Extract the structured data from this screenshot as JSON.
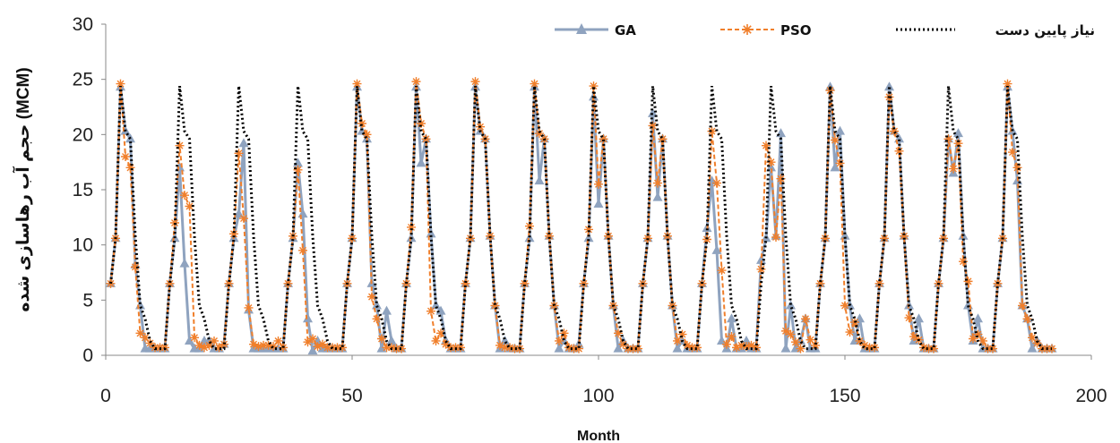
{
  "chart_data": {
    "type": "line",
    "xlabel": "Month",
    "ylabel": "حجم آب رهاسازی شده (MCM)",
    "xlim": [
      0,
      200
    ],
    "ylim": [
      0,
      30
    ],
    "x_ticks": [
      0,
      50,
      100,
      150,
      200
    ],
    "y_ticks": [
      0,
      5,
      10,
      15,
      20,
      25,
      30
    ],
    "grid": false,
    "legend_position": "top",
    "colors": {
      "GA": "#8fa3bf",
      "PSO": "#f07f2b",
      "demand": "#000000"
    },
    "series": [
      {
        "name": "GA",
        "x": [
          1,
          2,
          3,
          4,
          5,
          6,
          7,
          8,
          9,
          10,
          11,
          12,
          13,
          14,
          15,
          16,
          17,
          18,
          19,
          20,
          21,
          22,
          23,
          24,
          25,
          26,
          27,
          28,
          29,
          30,
          31,
          32,
          33,
          34,
          35,
          36,
          37,
          38,
          39,
          40,
          41,
          42,
          43,
          44,
          45,
          46,
          47,
          48,
          49,
          50,
          51,
          52,
          53,
          54,
          55,
          56,
          57,
          58,
          59,
          60,
          61,
          62,
          63,
          64,
          65,
          66,
          67,
          68,
          69,
          70,
          71,
          72,
          73,
          74,
          75,
          76,
          77,
          78,
          79,
          80,
          81,
          82,
          83,
          84,
          85,
          86,
          87,
          88,
          89,
          90,
          91,
          92,
          93,
          94,
          95,
          96,
          97,
          98,
          99,
          100,
          101,
          102,
          103,
          104,
          105,
          106,
          107,
          108,
          109,
          110,
          111,
          112,
          113,
          114,
          115,
          116,
          117,
          118,
          119,
          120,
          121,
          122,
          123,
          124,
          125,
          126,
          127,
          128,
          129,
          130,
          131,
          132,
          133,
          134,
          135,
          136,
          137,
          138,
          139,
          140,
          141,
          142,
          143,
          144,
          145,
          146,
          147,
          148,
          149,
          150,
          151,
          152,
          153,
          154,
          155,
          156,
          157,
          158,
          159,
          160,
          161,
          162,
          163,
          164,
          165,
          166,
          167,
          168,
          169,
          170,
          171,
          172,
          173,
          174,
          175,
          176,
          177,
          178,
          179,
          180,
          181,
          182,
          183,
          184,
          185,
          186,
          187,
          188,
          189,
          190,
          191,
          192
        ],
        "values": [
          6.5,
          10.6,
          24.3,
          20.3,
          19.6,
          8.2,
          4.5,
          0.6,
          0.6,
          0.6,
          0.6,
          0.6,
          6.5,
          10.6,
          17,
          8.3,
          1.3,
          0.6,
          0.6,
          1.3,
          1.3,
          0.6,
          0.6,
          1,
          6.5,
          10.6,
          12.8,
          19.2,
          4.1,
          0.6,
          0.6,
          0.6,
          0.6,
          0.6,
          0.6,
          0.6,
          6.5,
          10.6,
          17.4,
          12.8,
          3.3,
          0.4,
          1.3,
          0.6,
          0.6,
          0.6,
          0.6,
          0.6,
          6.5,
          10.6,
          24.3,
          20.3,
          19.6,
          6.5,
          4.5,
          0.6,
          4,
          1.3,
          0.6,
          0.6,
          6.5,
          10.6,
          24.3,
          17.4,
          19.6,
          11,
          4.5,
          4,
          1.3,
          0.6,
          0.6,
          0.6,
          6.5,
          10.6,
          24.3,
          20.3,
          19.6,
          10.8,
          4.5,
          0.6,
          1.3,
          0.6,
          0.6,
          0.6,
          6.5,
          10.6,
          24.3,
          15.8,
          19.6,
          10.8,
          4.5,
          0.6,
          1.3,
          0.6,
          0.6,
          1,
          6.5,
          10.6,
          23.4,
          13.7,
          19.6,
          10.8,
          4.5,
          0.6,
          1.3,
          0.6,
          0.6,
          0.6,
          6.5,
          10.6,
          21.9,
          14.3,
          19.6,
          10.8,
          4.5,
          0.6,
          1.3,
          0.6,
          0.6,
          0.6,
          6.5,
          11.5,
          15.8,
          9.5,
          1.3,
          0.6,
          3.3,
          0.6,
          0.6,
          1.3,
          0.6,
          0.6,
          8.6,
          10.6,
          17,
          10.8,
          20.1,
          0.6,
          4.5,
          0.6,
          1.3,
          3.3,
          0.6,
          0.6,
          6.5,
          10.6,
          24.3,
          17,
          20.3,
          10.8,
          4.5,
          1.3,
          3.3,
          0.6,
          0.6,
          0.6,
          6.5,
          10.6,
          24.3,
          20.3,
          19.6,
          10.8,
          4.5,
          1.3,
          3.3,
          0.6,
          0.6,
          0.6,
          6.5,
          10.6,
          19.6,
          16.5,
          20.1,
          10.8,
          4.5,
          1.3,
          3.3,
          0.6,
          0.6,
          0.6,
          6.5,
          10.6,
          24.3,
          20.3,
          15.8,
          4.5,
          3.3,
          0.6,
          1.3,
          0.6,
          0.6,
          0.6
        ]
      },
      {
        "name": "PSO",
        "x": [
          1,
          2,
          3,
          4,
          5,
          6,
          7,
          8,
          9,
          10,
          11,
          12,
          13,
          14,
          15,
          16,
          17,
          18,
          19,
          20,
          21,
          22,
          23,
          24,
          25,
          26,
          27,
          28,
          29,
          30,
          31,
          32,
          33,
          34,
          35,
          36,
          37,
          38,
          39,
          40,
          41,
          42,
          43,
          44,
          45,
          46,
          47,
          48,
          49,
          50,
          51,
          52,
          53,
          54,
          55,
          56,
          57,
          58,
          59,
          60,
          61,
          62,
          63,
          64,
          65,
          66,
          67,
          68,
          69,
          70,
          71,
          72,
          73,
          74,
          75,
          76,
          77,
          78,
          79,
          80,
          81,
          82,
          83,
          84,
          85,
          86,
          87,
          88,
          89,
          90,
          91,
          92,
          93,
          94,
          95,
          96,
          97,
          98,
          99,
          100,
          101,
          102,
          103,
          104,
          105,
          106,
          107,
          108,
          109,
          110,
          111,
          112,
          113,
          114,
          115,
          116,
          117,
          118,
          119,
          120,
          121,
          122,
          123,
          124,
          125,
          126,
          127,
          128,
          129,
          130,
          131,
          132,
          133,
          134,
          135,
          136,
          137,
          138,
          139,
          140,
          141,
          142,
          143,
          144,
          145,
          146,
          147,
          148,
          149,
          150,
          151,
          152,
          153,
          154,
          155,
          156,
          157,
          158,
          159,
          160,
          161,
          162,
          163,
          164,
          165,
          166,
          167,
          168,
          169,
          170,
          171,
          172,
          173,
          174,
          175,
          176,
          177,
          178,
          179,
          180,
          181,
          182,
          183,
          184,
          185,
          186,
          187,
          188,
          189,
          190,
          191,
          192
        ],
        "values": [
          6.5,
          10.6,
          24.6,
          18,
          17,
          8,
          2,
          1.6,
          1.1,
          0.7,
          0.7,
          0.7,
          6.5,
          12,
          19,
          14.5,
          13.5,
          1.6,
          0.9,
          0.7,
          0.9,
          1.3,
          0.7,
          1,
          6.5,
          11,
          18.3,
          12.4,
          4.3,
          1,
          0.8,
          0.9,
          0.9,
          0.8,
          1.3,
          0.7,
          6.5,
          10.8,
          16.8,
          9.5,
          1.2,
          1.5,
          0.8,
          1,
          0.7,
          0.7,
          0.7,
          0.7,
          6.5,
          10.6,
          24.6,
          21,
          20,
          5.3,
          3.3,
          1.5,
          0.7,
          0.7,
          0.6,
          0.6,
          6.5,
          11.6,
          24.8,
          21,
          19.6,
          4,
          1.3,
          2,
          1,
          0.7,
          0.7,
          0.7,
          6.5,
          10.6,
          24.8,
          20.7,
          19.6,
          10.8,
          4.5,
          0.9,
          0.7,
          0.7,
          0.6,
          0.6,
          6.5,
          11.7,
          24.6,
          20.1,
          19.6,
          10.8,
          4.5,
          1.3,
          2,
          0.7,
          0.6,
          0.6,
          6.5,
          11.4,
          24.4,
          15.5,
          19.6,
          10.8,
          4.5,
          2,
          1,
          0.6,
          0.6,
          0.6,
          6.5,
          10.6,
          20.8,
          15.6,
          19.6,
          10.8,
          4.5,
          1.3,
          1.9,
          0.9,
          0.7,
          0.7,
          6.5,
          10.5,
          20.3,
          15.6,
          7.7,
          1,
          1.7,
          0.7,
          0.9,
          0.8,
          0.9,
          0.7,
          7.8,
          19,
          17.5,
          10.7,
          16,
          2.2,
          1.9,
          1.2,
          0.6,
          3.3,
          1.4,
          0.9,
          6.5,
          10.6,
          24,
          19.5,
          17.4,
          4.5,
          2.1,
          3,
          1.3,
          0.9,
          0.7,
          0.7,
          6.5,
          10.6,
          23.4,
          20.3,
          18.5,
          10.8,
          3.4,
          1.7,
          1.4,
          0.7,
          0.6,
          0.6,
          6.5,
          10.6,
          19.6,
          16.9,
          19.2,
          8.5,
          6.7,
          1.5,
          1.9,
          1.3,
          0.6,
          0.6,
          6.5,
          10.6,
          24.6,
          18.4,
          17,
          4.5,
          3.3,
          1.6,
          1.1,
          0.6,
          0.6,
          0.6
        ]
      },
      {
        "name": "نیاز پایین دست",
        "x": [
          1,
          2,
          3,
          4,
          5,
          6,
          7,
          8,
          9,
          10,
          11,
          12,
          13,
          14,
          15,
          16,
          17,
          18,
          19,
          20,
          21,
          22,
          23,
          24,
          25,
          26,
          27,
          28,
          29,
          30,
          31,
          32,
          33,
          34,
          35,
          36,
          37,
          38,
          39,
          40,
          41,
          42,
          43,
          44,
          45,
          46,
          47,
          48,
          49,
          50,
          51,
          52,
          53,
          54,
          55,
          56,
          57,
          58,
          59,
          60,
          61,
          62,
          63,
          64,
          65,
          66,
          67,
          68,
          69,
          70,
          71,
          72,
          73,
          74,
          75,
          76,
          77,
          78,
          79,
          80,
          81,
          82,
          83,
          84,
          85,
          86,
          87,
          88,
          89,
          90,
          91,
          92,
          93,
          94,
          95,
          96,
          97,
          98,
          99,
          100,
          101,
          102,
          103,
          104,
          105,
          106,
          107,
          108,
          109,
          110,
          111,
          112,
          113,
          114,
          115,
          116,
          117,
          118,
          119,
          120,
          121,
          122,
          123,
          124,
          125,
          126,
          127,
          128,
          129,
          130,
          131,
          132,
          133,
          134,
          135,
          136,
          137,
          138,
          139,
          140,
          141,
          142,
          143,
          144,
          145,
          146,
          147,
          148,
          149,
          150,
          151,
          152,
          153,
          154,
          155,
          156,
          157,
          158,
          159,
          160,
          161,
          162,
          163,
          164,
          165,
          166,
          167,
          168,
          169,
          170,
          171,
          172,
          173,
          174,
          175,
          176,
          177,
          178,
          179,
          180,
          181,
          182,
          183,
          184,
          185,
          186,
          187,
          188,
          189,
          190,
          191,
          192
        ],
        "values": [
          6.5,
          10.6,
          24.4,
          20.3,
          19.6,
          10.8,
          4.5,
          3.3,
          1.3,
          0.6,
          0.6,
          0.6,
          6.5,
          10.6,
          24.4,
          20.3,
          19.6,
          10.8,
          4.5,
          3.3,
          1.3,
          0.6,
          0.6,
          0.6,
          6.5,
          10.6,
          24.4,
          20.3,
          19.6,
          10.8,
          4.5,
          3.3,
          1.3,
          0.6,
          0.6,
          0.6,
          6.5,
          10.6,
          24.4,
          20.3,
          19.6,
          10.8,
          4.5,
          3.3,
          1.3,
          0.6,
          0.6,
          0.6,
          6.5,
          10.6,
          24.4,
          20.3,
          19.6,
          10.8,
          4.5,
          3.3,
          1.3,
          0.6,
          0.6,
          0.6,
          6.5,
          10.6,
          24.4,
          20.3,
          19.6,
          10.8,
          4.5,
          3.3,
          1.3,
          0.6,
          0.6,
          0.6,
          6.5,
          10.6,
          24.4,
          20.3,
          19.6,
          10.8,
          4.5,
          3.3,
          1.3,
          0.6,
          0.6,
          0.6,
          6.5,
          10.6,
          24.4,
          20.3,
          19.6,
          10.8,
          4.5,
          3.3,
          1.3,
          0.6,
          0.6,
          0.6,
          6.5,
          10.6,
          24.4,
          20.3,
          19.6,
          10.8,
          4.5,
          3.3,
          1.3,
          0.6,
          0.6,
          0.6,
          6.5,
          10.6,
          24.4,
          20.3,
          19.6,
          10.8,
          4.5,
          3.3,
          1.3,
          0.6,
          0.6,
          0.6,
          6.5,
          10.6,
          24.4,
          20.3,
          19.6,
          10.8,
          4.5,
          3.3,
          1.3,
          0.6,
          0.6,
          0.6,
          6.5,
          10.6,
          24.4,
          20.3,
          19.6,
          10.8,
          4.5,
          3.3,
          1.3,
          0.6,
          0.6,
          0.6,
          6.5,
          10.6,
          24.4,
          20.3,
          19.6,
          10.8,
          4.5,
          3.3,
          1.3,
          0.6,
          0.6,
          0.6,
          6.5,
          10.6,
          24.4,
          20.3,
          19.6,
          10.8,
          4.5,
          3.3,
          1.3,
          0.6,
          0.6,
          0.6,
          6.5,
          10.6,
          24.4,
          20.3,
          19.6,
          10.8,
          4.5,
          3.3,
          1.3,
          0.6,
          0.6,
          0.6,
          6.5,
          10.6,
          24.4,
          20.3,
          19.6,
          10.8,
          4.5,
          3.3,
          1.3,
          0.6,
          0.6,
          0.6
        ]
      }
    ]
  }
}
